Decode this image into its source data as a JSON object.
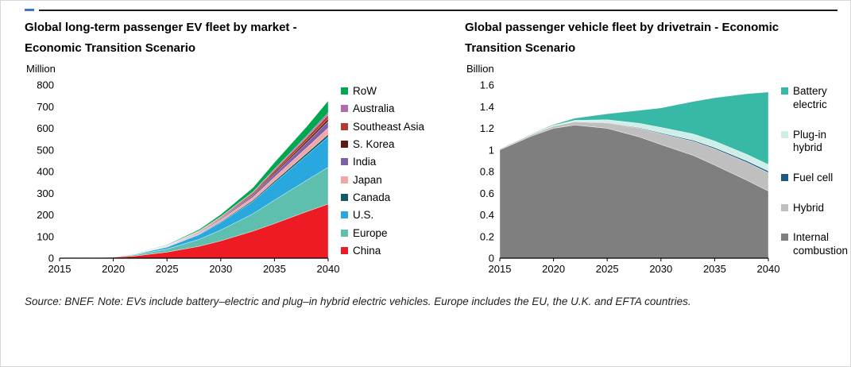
{
  "page": {
    "source_note": "Source: BNEF. Note: EVs include battery–electric and plug–in hybrid electric vehicles. Europe includes the EU, the U.K. and EFTA countries."
  },
  "chart_data": [
    {
      "type": "area",
      "stacked": true,
      "title": "Global long-term passenger EV fleet by market - Economic Transition Scenario",
      "title_lines": [
        "Global long-term passenger EV fleet by market -",
        "Economic Transition Scenario"
      ],
      "unit_label": "Million",
      "ylim": [
        0,
        800
      ],
      "ytick_step": 100,
      "xlim": [
        2015,
        2040
      ],
      "xticks": [
        2015,
        2020,
        2025,
        2030,
        2035,
        2040
      ],
      "x": [
        2015,
        2018,
        2020,
        2022,
        2025,
        2028,
        2030,
        2033,
        2035,
        2038,
        2040
      ],
      "legend_position": "right",
      "series": [
        {
          "name": "China",
          "color": "#ed1c24",
          "values": [
            1,
            2,
            4,
            10,
            28,
            55,
            80,
            125,
            160,
            215,
            250
          ]
        },
        {
          "name": "Europe",
          "color": "#5fbfae",
          "values": [
            0,
            1,
            2,
            5,
            14,
            32,
            50,
            80,
            108,
            145,
            170
          ]
        },
        {
          "name": "U.S.",
          "color": "#29a8e0",
          "values": [
            0,
            0.5,
            1,
            3,
            9,
            22,
            35,
            57,
            80,
            115,
            140
          ]
        },
        {
          "name": "Canada",
          "color": "#125a66",
          "values": [
            0,
            0,
            0.2,
            0.5,
            1.2,
            2.5,
            4,
            6,
            8,
            10,
            12
          ]
        },
        {
          "name": "Japan",
          "color": "#f4a6a6",
          "values": [
            0,
            0.2,
            0.5,
            1,
            2.5,
            5.5,
            8,
            13,
            18,
            25,
            30
          ]
        },
        {
          "name": "India",
          "color": "#7c60aa",
          "values": [
            0,
            0,
            0.2,
            0.5,
            1.5,
            3.5,
            5,
            9,
            15,
            23,
            30
          ]
        },
        {
          "name": "S. Korea",
          "color": "#5e1a12",
          "values": [
            0,
            0,
            0.2,
            0.4,
            1,
            2,
            3,
            5,
            7,
            10,
            12
          ]
        },
        {
          "name": "Southeast Asia",
          "color": "#b53a32",
          "values": [
            0,
            0,
            0.1,
            0.3,
            1,
            2.5,
            4,
            7,
            10,
            14,
            18
          ]
        },
        {
          "name": "Australia",
          "color": "#b06bb3",
          "values": [
            0,
            0,
            0.1,
            0.3,
            0.8,
            2,
            3,
            4.5,
            6,
            8,
            10
          ]
        },
        {
          "name": "RoW",
          "color": "#00a650",
          "values": [
            0,
            0.2,
            0.5,
            1,
            2.5,
            6,
            10,
            19,
            30,
            43,
            55
          ]
        }
      ]
    },
    {
      "type": "area",
      "stacked": true,
      "title": "Global passenger vehicle fleet by drivetrain - Economic Transition Scenario",
      "title_lines": [
        "Global passenger vehicle fleet by drivetrain - Economic",
        "Transition Scenario"
      ],
      "unit_label": "Billion",
      "ylim": [
        0,
        1.6
      ],
      "ytick_step": 0.2,
      "xlim": [
        2015,
        2040
      ],
      "xticks": [
        2015,
        2020,
        2025,
        2030,
        2035,
        2040
      ],
      "x": [
        2015,
        2018,
        2020,
        2022,
        2025,
        2028,
        2030,
        2033,
        2035,
        2038,
        2040
      ],
      "legend_position": "right",
      "series": [
        {
          "name": "Internal combustion",
          "color": "#7f7f7f",
          "values": [
            1.0,
            1.13,
            1.2,
            1.23,
            1.2,
            1.12,
            1.05,
            0.95,
            0.86,
            0.72,
            0.62
          ]
        },
        {
          "name": "Hybrid",
          "color": "#bfbfbf",
          "values": [
            0.01,
            0.015,
            0.02,
            0.03,
            0.05,
            0.08,
            0.1,
            0.13,
            0.15,
            0.165,
            0.17
          ]
        },
        {
          "name": "Fuel cell",
          "color": "#1b5a82",
          "values": [
            0,
            0,
            0.001,
            0.002,
            0.004,
            0.006,
            0.008,
            0.01,
            0.012,
            0.014,
            0.015
          ]
        },
        {
          "name": "Plug-in hybrid",
          "color": "#cfeee8",
          "values": [
            0.001,
            0.003,
            0.006,
            0.012,
            0.025,
            0.04,
            0.05,
            0.058,
            0.06,
            0.06,
            0.06
          ]
        },
        {
          "name": "Battery electric",
          "color": "#38b8a6",
          "values": [
            0.001,
            0.004,
            0.008,
            0.02,
            0.055,
            0.12,
            0.18,
            0.3,
            0.4,
            0.56,
            0.67
          ]
        }
      ]
    }
  ]
}
